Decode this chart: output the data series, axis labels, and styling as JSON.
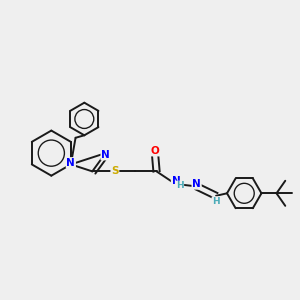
{
  "background_color": "#efefef",
  "bond_color": "#1a1a1a",
  "atom_colors": {
    "N": "#0000ff",
    "O": "#ff0000",
    "S": "#ccaa00",
    "H": "#4aabb8",
    "C": "#1a1a1a"
  },
  "figsize": [
    3.0,
    3.0
  ],
  "dpi": 100,
  "lw": 1.4,
  "fontsize": 7.5
}
